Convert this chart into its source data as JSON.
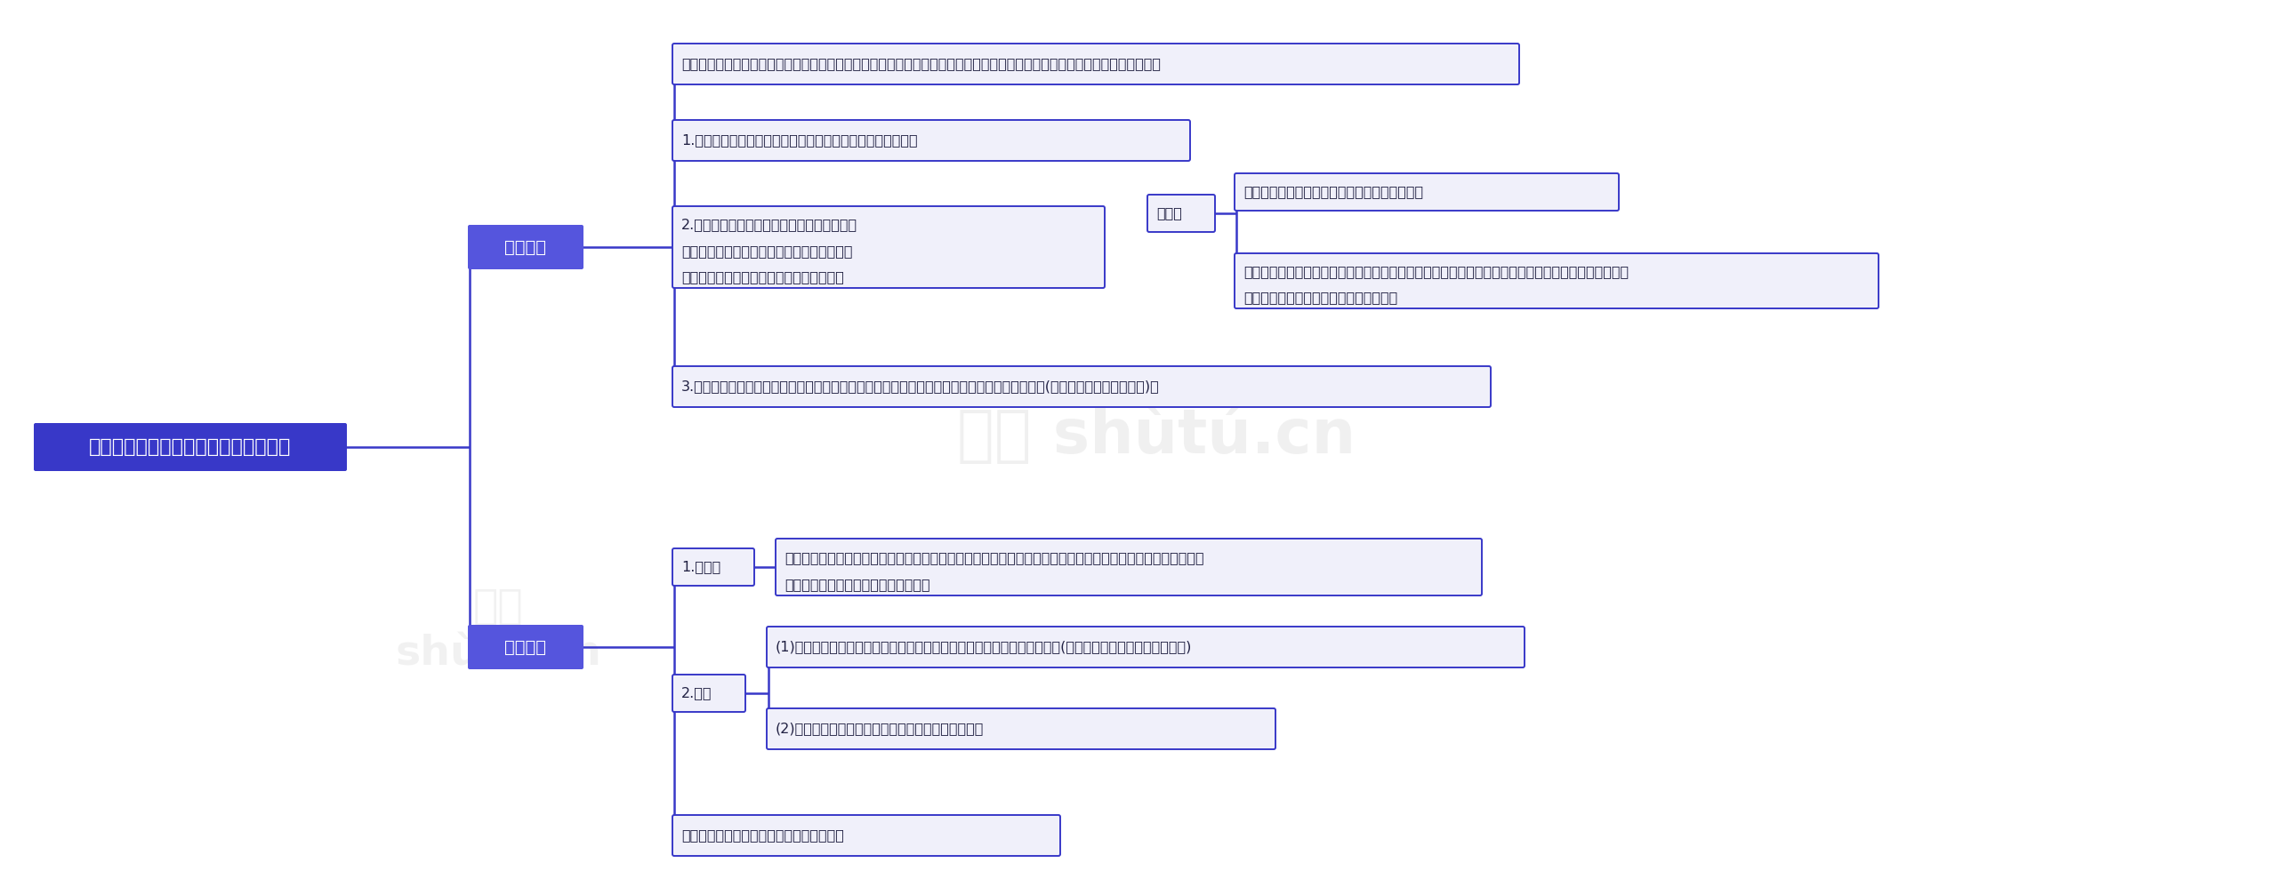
{
  "bg_color": "#ffffff",
  "root_text": "《刑法》知识点：特别自首和特别累犯",
  "root_box_color": "#3838c8",
  "root_text_color": "#ffffff",
  "branch1_text": "特别自首",
  "branch2_text": "特别累犯",
  "branch_box_color": "#5555dd",
  "branch_text_color": "#ffffff",
  "line_color": "#3838c8",
  "node_border_color": "#3838c8",
  "node_fill_color": "#f0f0fa",
  "text_color": "#222244",
  "nodes": {
    "zishou_def": "特别自首是指被采取强制措施的犯罪嫌疑人、被告人或者正在服刑的罪犯，如实供述司法机关还未掌握的本人其他罪行的行为。",
    "zishou_1": "1.如实供述的罪行必须是司法机关还未掌握的本人其他罪行。",
    "zishou_2_l1": "2.如实供述的罪行必须与司法机关已掌握的或",
    "zishou_2_l2": "者判决确定的罪行属不同种罪行。如果是同种",
    "zishou_2_l3": "罪行，可以酵情从轻处罚，但不属于自首。",
    "zishou_3": "3.「强制措施」包括拘传、取保候审、监视居住、拘留和逐捕等刑事强制措施，还包括行政拘留(有利于行为人的类推解释)。",
    "note_label": "注意：",
    "note_1": "司法机关已掌握的罪行必须是证明成立的罪行。",
    "note_2_l1": "例如，甲涉嫌受贿罪被捕后，司法机关发现受贿罪不成立。此时，甲又主动供述新的受贿罪事实。该事",
    "note_2_l2": "实是司法机关尚未掌握的，甲构成自首。",
    "leifan_1_label": "1.概念：",
    "leifan_1_l1": "被判处危害国家安全罪、恐怖活动犯罪、黑社会性质的组织犯罪的犯罪分子在刑罚执行完毕或者赦免以后，在任",
    "leifan_1_l2": "何时候再犯上述任一类罪的犯罪分子。",
    "leifan_2_label": "2.条件",
    "leifan_2_1": "(1)前后罪都是危害国家安全罪、恐怖活动犯罪或黑社会性质的组织犯罪。(后两种系《刑法修正案八》增加)",
    "leifan_2_2": "(2)后罪发生在前罪刑罚执行完毕或赦免后任何时间。",
    "leifan_extra": "不要求前后罪应当判处有期徒刑以上刑罚。"
  }
}
